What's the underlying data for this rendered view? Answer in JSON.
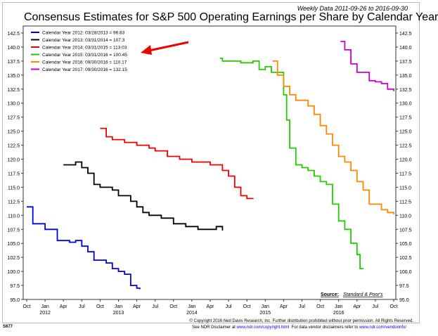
{
  "header": {
    "weekly": "Weekly Data 2011-09-26 to 2016-09-30",
    "code": "S677"
  },
  "footer": {
    "copyright": "© Copyright 2016 Ned Davis Research, Inc. Further distribution prohibited without prior permission. All Rights Reserved.",
    "disclaimer_prefix": "See NDR Disclaimer at",
    "disclaimer_link": "www.ndr.com/copyright.html",
    "vendor_prefix": "For data vendor disclaimers refer to",
    "vendor_link": "www.ndr.com/vendorinfo/"
  },
  "chart_data": {
    "type": "line",
    "title": "Consensus Estimates for S&P 500 Operating Earnings per Share by Calendar Year",
    "source_label": "Source:",
    "source": "Standard & Poor's",
    "x_unit": "months since Oct 2011",
    "ylim": [
      95,
      142.5
    ],
    "yticks": [
      "95.0",
      "97.5",
      "100.0",
      "102.5",
      "105.0",
      "107.5",
      "110.0",
      "112.5",
      "115.0",
      "117.5",
      "120.0",
      "122.5",
      "125.0",
      "127.5",
      "130.0",
      "132.5",
      "135.0",
      "137.5",
      "140.0",
      "142.5"
    ],
    "xticks": [
      "Oct",
      "Jan",
      "Apr",
      "Jul",
      "Oct",
      "Jan",
      "Apr",
      "Jul",
      "Oct",
      "Jan",
      "Apr",
      "Jul",
      "Oct",
      "Jan",
      "Apr",
      "Jul",
      "Oct",
      "Jan",
      "Apr",
      "Jul",
      "Oct"
    ],
    "years": [
      {
        "label": "2012",
        "m": 3
      },
      {
        "label": "2013",
        "m": 15
      },
      {
        "label": "2014",
        "m": 27
      },
      {
        "label": "2015",
        "m": 39
      },
      {
        "label": "2016",
        "m": 51
      }
    ],
    "series": [
      {
        "name": "Calendar Year 2012:  03/28/2013 = 96.83",
        "color": "#0000ee",
        "points": [
          [
            0,
            111.5
          ],
          [
            1,
            108.5
          ],
          [
            3,
            107.5
          ],
          [
            5,
            105.5
          ],
          [
            7,
            105.2
          ],
          [
            8,
            105.5
          ],
          [
            9,
            104.5
          ],
          [
            10,
            103.5
          ],
          [
            11,
            102
          ],
          [
            13,
            101.5
          ],
          [
            14,
            100.5
          ],
          [
            15,
            100
          ],
          [
            16,
            99.5
          ],
          [
            17,
            97.5
          ],
          [
            18,
            97
          ],
          [
            18.5,
            96.83
          ]
        ]
      },
      {
        "name": "Calendar Year 2013:  03/31/2014 = 107.3",
        "color": "#000000",
        "points": [
          [
            6,
            119
          ],
          [
            7,
            119
          ],
          [
            8,
            119.5
          ],
          [
            9,
            118.5
          ],
          [
            10,
            117.5
          ],
          [
            11,
            115.5
          ],
          [
            12,
            115
          ],
          [
            14,
            114.5
          ],
          [
            15,
            113.5
          ],
          [
            17,
            112.5
          ],
          [
            18,
            111.5
          ],
          [
            19,
            110.5
          ],
          [
            20,
            110
          ],
          [
            22,
            109.5
          ],
          [
            24,
            108.5
          ],
          [
            26,
            108
          ],
          [
            28,
            107.5
          ],
          [
            30,
            107.5
          ],
          [
            31,
            108
          ],
          [
            32,
            107.3
          ]
        ]
      },
      {
        "name": "Calendar Year 2014:  03/31/2015 = 113.03",
        "color": "#ee0000",
        "points": [
          [
            12,
            125.5
          ],
          [
            13,
            124
          ],
          [
            14,
            123.5
          ],
          [
            16,
            123
          ],
          [
            18,
            122.5
          ],
          [
            20,
            122
          ],
          [
            21,
            121.5
          ],
          [
            23,
            120.5
          ],
          [
            25,
            120
          ],
          [
            27,
            119.5
          ],
          [
            29,
            119.5
          ],
          [
            30,
            119
          ],
          [
            32,
            118
          ],
          [
            33,
            117
          ],
          [
            34,
            115
          ],
          [
            35,
            113.5
          ],
          [
            36,
            113
          ],
          [
            37,
            113.03
          ]
        ]
      },
      {
        "name": "Calendar Year 2015:  03/31/2016 = 100.45",
        "color": "#22cc00",
        "points": [
          [
            31.6,
            138
          ],
          [
            32,
            137.5
          ],
          [
            35,
            137.2
          ],
          [
            37,
            137.5
          ],
          [
            38,
            136
          ],
          [
            39,
            136.5
          ],
          [
            40,
            135.5
          ],
          [
            41,
            135.5
          ],
          [
            42,
            131.5
          ],
          [
            42.5,
            127
          ],
          [
            43,
            122
          ],
          [
            44,
            119
          ],
          [
            45,
            118.5
          ],
          [
            46,
            118
          ],
          [
            47,
            117
          ],
          [
            48,
            116
          ],
          [
            49,
            115.5
          ],
          [
            50,
            112
          ],
          [
            51,
            109
          ],
          [
            52,
            107.5
          ],
          [
            53,
            105
          ],
          [
            54,
            103
          ],
          [
            54.5,
            100.5
          ],
          [
            55,
            100.45
          ]
        ]
      },
      {
        "name": "Calendar Year 2016:  09/30/2016 = 110.17",
        "color": "#ff8800",
        "points": [
          [
            40.2,
            137.5
          ],
          [
            41,
            135
          ],
          [
            42,
            133
          ],
          [
            43,
            131.5
          ],
          [
            44,
            130.5
          ],
          [
            46,
            129.5
          ],
          [
            47,
            128
          ],
          [
            48,
            126
          ],
          [
            49,
            124.5
          ],
          [
            50,
            122.5
          ],
          [
            51,
            120.5
          ],
          [
            52,
            119.5
          ],
          [
            53,
            118
          ],
          [
            54,
            116
          ],
          [
            55,
            114.5
          ],
          [
            56,
            112
          ],
          [
            58,
            111
          ],
          [
            59,
            110.5
          ],
          [
            60,
            110.17
          ]
        ]
      },
      {
        "name": "Calendar Year 2017:  09/30/2016 = 132.15",
        "color": "#cc00cc",
        "points": [
          [
            51.3,
            141
          ],
          [
            52,
            139.5
          ],
          [
            53,
            137
          ],
          [
            54,
            135.5
          ],
          [
            56,
            134
          ],
          [
            57,
            133.8
          ],
          [
            58,
            133.5
          ],
          [
            59,
            132.5
          ],
          [
            60,
            132.15
          ]
        ]
      }
    ]
  }
}
